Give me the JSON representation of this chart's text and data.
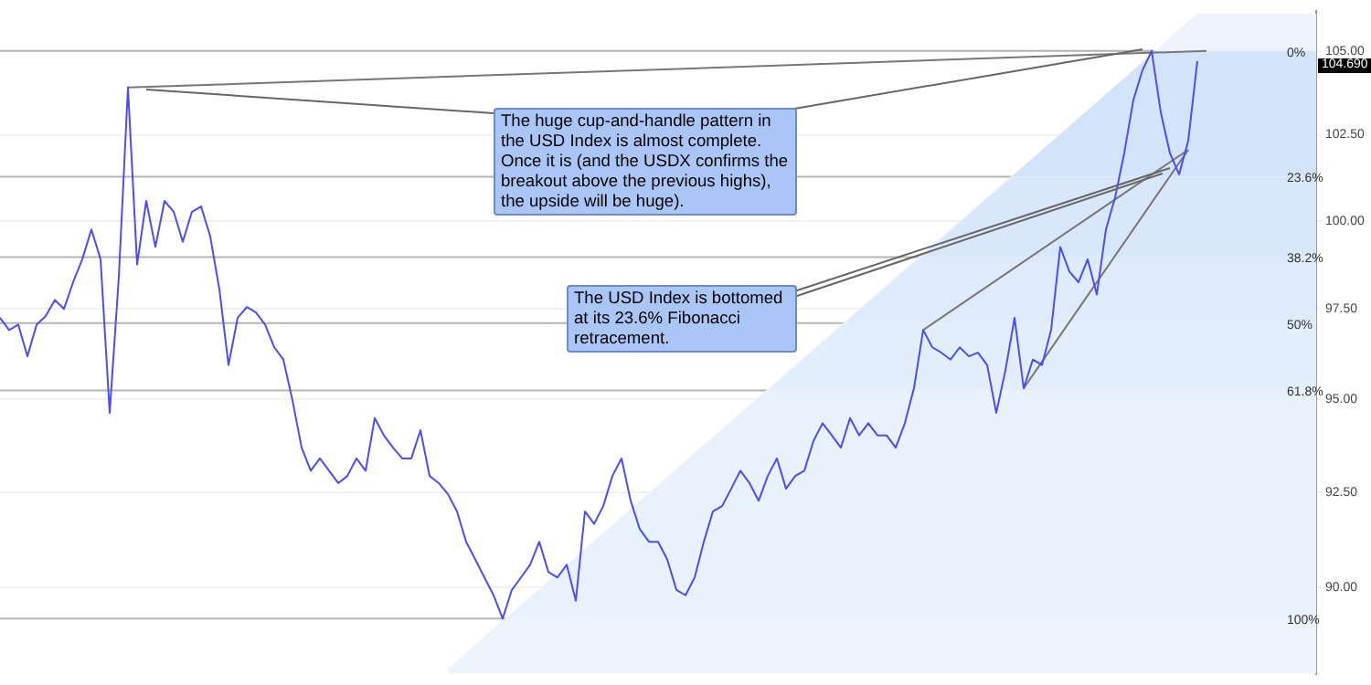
{
  "chart_data": {
    "type": "line",
    "categories": [
      null,
      null,
      null,
      null,
      null,
      null,
      null,
      null,
      null,
      null,
      null,
      null,
      null,
      null,
      null,
      null,
      null,
      null,
      null,
      null,
      null,
      null,
      null,
      null,
      null,
      null,
      null,
      null,
      null,
      null,
      null,
      null,
      null,
      null,
      null,
      null,
      null,
      null,
      null,
      null,
      null,
      null,
      null,
      null,
      null,
      null,
      null,
      null,
      null,
      null,
      null,
      null,
      null,
      null,
      null,
      null,
      null,
      null,
      null,
      null,
      null,
      null,
      null,
      null,
      null,
      null,
      null,
      null,
      null,
      null,
      null,
      null,
      null,
      null,
      null,
      null,
      null,
      null,
      null,
      null,
      null,
      null,
      null,
      null,
      null,
      null,
      null,
      null,
      null,
      null,
      null,
      null,
      null,
      null,
      null,
      null,
      null,
      null,
      null,
      null,
      null,
      null,
      null,
      null,
      null,
      null,
      null,
      null,
      null,
      null,
      null,
      null,
      null,
      null,
      null,
      null,
      null,
      null,
      null,
      null,
      null,
      null,
      null,
      null,
      null,
      null,
      null,
      null,
      null,
      null,
      null,
      null,
      null,
      null,
      null,
      null,
      null,
      null,
      null,
      null,
      null,
      null,
      null,
      null,
      null
    ],
    "series": [
      {
        "type": "area",
        "color": "#eef4fd",
        "values": [
          null,
          null,
          null,
          null,
          null,
          null,
          null,
          null,
          null,
          null,
          null,
          null,
          null,
          null,
          null,
          null,
          null,
          null,
          null,
          null,
          null,
          null,
          null,
          null,
          null,
          null,
          null,
          null,
          null,
          null,
          null,
          null,
          null,
          null,
          null,
          null,
          null,
          null,
          null,
          null,
          null,
          null,
          null,
          null,
          null,
          null,
          null,
          null,
          null,
          87.9,
          null,
          null,
          null,
          null,
          null,
          null,
          null,
          null,
          null,
          null,
          null,
          null,
          null,
          null,
          null,
          null,
          null,
          null,
          null,
          null,
          null,
          null,
          null,
          null,
          null,
          null,
          null,
          null,
          null,
          null,
          null,
          null,
          null,
          null,
          null,
          null,
          null,
          null,
          null,
          null,
          null,
          null,
          null,
          null,
          null,
          null,
          null,
          null,
          null,
          null,
          null,
          null,
          null,
          null,
          null,
          null,
          null,
          null,
          null,
          null,
          null,
          null,
          null,
          null,
          null,
          null,
          null,
          null,
          null,
          null,
          null,
          null,
          null,
          null,
          null,
          null,
          null,
          null,
          null,
          null,
          null,
          106.1,
          null,
          null,
          null,
          null,
          null,
          null,
          null,
          null,
          null,
          null,
          null,
          null,
          106.1
        ]
      },
      {
        "color": "#4d4df5",
        "values": [
          97.25,
          96.91,
          97.06,
          96.18,
          97.06,
          97.3,
          97.75,
          97.5,
          98.25,
          98.9,
          99.75,
          98.9,
          94.63,
          98.4,
          103.9,
          98.75,
          100.57,
          99.25,
          100.57,
          100.26,
          99.4,
          100.26,
          100.41,
          99.55,
          98.05,
          95.94,
          97.25,
          97.55,
          97.4,
          97.06,
          96.43,
          96.09,
          94.97,
          93.69,
          93.07,
          93.4,
          93.07,
          92.74,
          92.93,
          93.4,
          93.07,
          94.49,
          94.02,
          93.69,
          93.4,
          93.4,
          94.16,
          92.93,
          92.74,
          92.45,
          91.99,
          91.19,
          90.73,
          90.26,
          89.8,
          89.2,
          89.94,
          90.26,
          90.59,
          91.19,
          90.4,
          90.26,
          90.59,
          89.66,
          91.99,
          91.66,
          92.13,
          92.93,
          93.4,
          92.27,
          91.52,
          91.19,
          91.19,
          90.73,
          89.94,
          89.8,
          90.26,
          91.19,
          91.99,
          92.13,
          92.59,
          93.07,
          92.74,
          92.27,
          92.93,
          93.4,
          92.59,
          92.93,
          93.07,
          93.87,
          94.35,
          94.02,
          93.69,
          94.49,
          94.02,
          94.35,
          94.02,
          94.02,
          93.69,
          94.35,
          95.31,
          96.91,
          96.43,
          96.28,
          96.09,
          96.43,
          96.18,
          96.28,
          95.94,
          94.63,
          95.79,
          97.25,
          95.3,
          96.09,
          95.94,
          96.91,
          99.25,
          98.55,
          98.25,
          98.9,
          97.9,
          99.75,
          100.67,
          101.96,
          103.53,
          104.42,
          105.0,
          103.16,
          101.96,
          101.34,
          102.32,
          104.69,
          null,
          null,
          null,
          null,
          null,
          null,
          null,
          null,
          null,
          null,
          null,
          null,
          null
        ]
      },
      {
        "type": "line",
        "color": "#777777",
        "values": [
          null,
          null,
          null,
          null,
          null,
          null,
          null,
          null,
          null,
          null,
          null,
          null,
          null,
          null,
          103.9,
          null,
          null,
          null,
          null,
          null,
          null,
          null,
          null,
          null,
          null,
          null,
          null,
          null,
          null,
          null,
          null,
          null,
          null,
          null,
          null,
          null,
          null,
          null,
          null,
          null,
          null,
          null,
          null,
          null,
          null,
          null,
          null,
          null,
          null,
          null,
          null,
          null,
          null,
          null,
          null,
          null,
          null,
          null,
          null,
          null,
          null,
          null,
          null,
          null,
          null,
          null,
          null,
          null,
          null,
          null,
          null,
          null,
          null,
          null,
          null,
          null,
          null,
          null,
          null,
          null,
          null,
          null,
          null,
          null,
          null,
          null,
          null,
          null,
          null,
          null,
          null,
          null,
          null,
          null,
          null,
          null,
          null,
          null,
          null,
          null,
          null,
          null,
          null,
          null,
          null,
          null,
          null,
          null,
          null,
          null,
          null,
          null,
          null,
          null,
          null,
          null,
          null,
          null,
          null,
          null,
          null,
          null,
          null,
          null,
          null,
          null,
          null,
          null,
          null,
          null,
          null,
          null,
          105.0,
          null,
          null,
          null,
          null,
          null,
          null,
          null,
          null,
          null,
          null,
          null,
          null
        ]
      },
      {
        "type": "line",
        "color": "#777777",
        "values": [
          null,
          null,
          null,
          null,
          null,
          null,
          null,
          null,
          null,
          null,
          null,
          null,
          null,
          null,
          null,
          null,
          null,
          null,
          null,
          null,
          null,
          null,
          null,
          null,
          null,
          null,
          null,
          null,
          null,
          null,
          null,
          null,
          null,
          null,
          null,
          null,
          null,
          null,
          null,
          null,
          null,
          null,
          null,
          null,
          null,
          null,
          null,
          null,
          null,
          null,
          null,
          null,
          null,
          null,
          null,
          null,
          null,
          null,
          null,
          null,
          null,
          null,
          null,
          null,
          null,
          null,
          null,
          null,
          null,
          null,
          null,
          null,
          null,
          null,
          null,
          null,
          null,
          null,
          null,
          null,
          null,
          null,
          null,
          null,
          null,
          null,
          null,
          null,
          null,
          null,
          null,
          null,
          null,
          null,
          null,
          null,
          null,
          null,
          null,
          null,
          null,
          96.91,
          null,
          null,
          null,
          null,
          null,
          null,
          null,
          null,
          null,
          null,
          null,
          null,
          null,
          null,
          null,
          null,
          null,
          null,
          null,
          null,
          null,
          null,
          null,
          null,
          null,
          null,
          null,
          null,
          102.06,
          null,
          null,
          null,
          null,
          null,
          null,
          null,
          null,
          null,
          null,
          null,
          null,
          null,
          null
        ]
      },
      {
        "type": "line",
        "color": "#777777",
        "values": [
          null,
          null,
          null,
          null,
          null,
          null,
          null,
          null,
          null,
          null,
          null,
          null,
          null,
          null,
          null,
          null,
          null,
          null,
          null,
          null,
          null,
          null,
          null,
          null,
          null,
          null,
          null,
          null,
          null,
          null,
          null,
          null,
          null,
          null,
          null,
          null,
          null,
          null,
          null,
          null,
          null,
          null,
          null,
          null,
          null,
          null,
          null,
          null,
          null,
          null,
          null,
          null,
          null,
          null,
          null,
          null,
          null,
          null,
          null,
          null,
          null,
          null,
          null,
          null,
          null,
          null,
          null,
          null,
          null,
          null,
          null,
          null,
          null,
          null,
          null,
          null,
          null,
          null,
          null,
          null,
          null,
          null,
          null,
          null,
          null,
          null,
          null,
          null,
          null,
          null,
          null,
          null,
          null,
          null,
          null,
          null,
          null,
          null,
          null,
          null,
          null,
          null,
          null,
          null,
          null,
          null,
          null,
          null,
          null,
          null,
          null,
          null,
          95.3,
          null,
          null,
          null,
          null,
          null,
          null,
          null,
          null,
          null,
          null,
          null,
          null,
          null,
          null,
          null,
          null,
          null,
          102.06,
          null,
          null,
          null,
          null,
          null,
          null,
          null,
          null,
          null,
          null,
          null,
          null,
          null,
          null
        ]
      }
    ],
    "log": "y",
    "ylim": [
      87.8,
      106.2
    ],
    "yticks": [
      {
        "value": 90,
        "label": "90.00"
      },
      {
        "value": 92.5,
        "label": "92.50"
      },
      {
        "value": 95,
        "label": "95.00"
      },
      {
        "value": 97.5,
        "label": "97.50"
      },
      {
        "value": 100,
        "label": "100.00"
      },
      {
        "value": 102.5,
        "label": "102.50"
      },
      {
        "value": 105,
        "label": "105.00"
      }
    ],
    "tick_labels": "y",
    "grid": "y",
    "legend": false,
    "marker": "none",
    "line_style": "solid",
    "ref_lines": [
      {
        "axis": "y",
        "value": 105.0
      },
      {
        "axis": "y",
        "value": 101.27
      },
      {
        "axis": "y",
        "value": 98.96
      },
      {
        "axis": "y",
        "value": 97.1
      },
      {
        "axis": "y",
        "value": 95.24
      },
      {
        "axis": "y",
        "value": 89.2
      }
    ],
    "bands": [
      {
        "axis": "y",
        "from": 101.27,
        "to": 105.0,
        "color": "#d3e3f9"
      },
      {
        "axis": "y",
        "from": 98.96,
        "to": 101.27,
        "color": "#d9e7fa"
      },
      {
        "axis": "y",
        "from": 97.1,
        "to": 98.96,
        "color": "#dfebfb"
      },
      {
        "axis": "y",
        "from": 95.24,
        "to": 97.1,
        "color": "#e3eefc"
      },
      {
        "axis": "y",
        "from": 89.2,
        "to": 95.24,
        "color": "#e8f1fc"
      }
    ],
    "annotations": [
      "The huge cup-and-handle pattern in the USD Index is almost complete. Once it is (and the USDX confirms the breakout above the previous highs), the upside will be huge).",
      "The USD Index is bottomed at its 23.6% Fibonacci retracement.",
      "104.690",
      {
        "text": "0%",
        "y": 105.0
      },
      {
        "text": "23.6%",
        "y": 101.27
      },
      {
        "text": "38.2%",
        "y": 98.96
      },
      {
        "text": "50%",
        "y": 97.1
      },
      {
        "text": "61.8%",
        "y": 95.24
      },
      {
        "text": "100%",
        "y": 89.2
      }
    ]
  }
}
